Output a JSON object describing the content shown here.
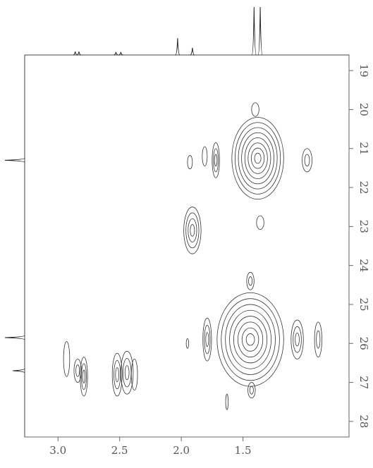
{
  "chart_data": {
    "type": "contour",
    "xlim": [
      3.27,
      0.64
    ],
    "xticks": [
      {
        "value": 3.0,
        "label": "3.0"
      },
      2.5,
      {
        "value": 2.0,
        "label": "2.0"
      },
      1.5
    ],
    "ylim": [
      18.6,
      28.4
    ],
    "yticks": [
      19,
      20,
      21,
      22,
      23,
      24,
      25,
      26,
      27,
      28
    ],
    "color": "#333333",
    "peaks": {
      "x": [
        1.38,
        1.4,
        0.98,
        1.72,
        1.81,
        1.93,
        1.36,
        1.91,
        1.44,
        1.44,
        1.79,
        1.06,
        0.89,
        1.95,
        2.93,
        2.84,
        2.79,
        2.52,
        2.44,
        2.38,
        1.63,
        1.43
      ],
      "y": [
        21.25,
        20.0,
        21.3,
        21.3,
        21.2,
        21.35,
        22.9,
        23.1,
        24.4,
        25.9,
        25.9,
        25.9,
        25.9,
        26.0,
        26.4,
        26.7,
        26.85,
        26.8,
        26.75,
        26.8,
        27.5,
        27.2
      ],
      "width": [
        0.42,
        0.06,
        0.08,
        0.06,
        0.04,
        0.04,
        0.06,
        0.14,
        0.06,
        0.54,
        0.07,
        0.1,
        0.06,
        0.02,
        0.05,
        0.06,
        0.06,
        0.08,
        0.1,
        0.05,
        0.02,
        0.06
      ],
      "height": [
        2.1,
        0.35,
        0.6,
        0.9,
        0.5,
        0.35,
        0.35,
        1.2,
        0.45,
        2.4,
        1.1,
        1.0,
        0.9,
        0.25,
        0.9,
        0.6,
        1.0,
        1.1,
        1.1,
        0.8,
        0.4,
        0.4
      ],
      "levels": [
        8,
        1,
        2,
        3,
        1,
        1,
        1,
        4,
        2,
        8,
        3,
        3,
        2,
        1,
        1,
        2,
        3,
        3,
        3,
        1,
        1,
        2
      ]
    },
    "top_projection": {
      "x": [
        1.41,
        1.36,
        2.03,
        1.91,
        2.86,
        2.83,
        2.53,
        2.49
      ],
      "values": [
        100,
        100,
        35,
        15,
        7,
        7,
        6,
        6
      ]
    },
    "left_projection": {
      "y": [
        21.3,
        25.85,
        26.7
      ],
      "values": [
        100,
        100,
        60
      ]
    }
  }
}
